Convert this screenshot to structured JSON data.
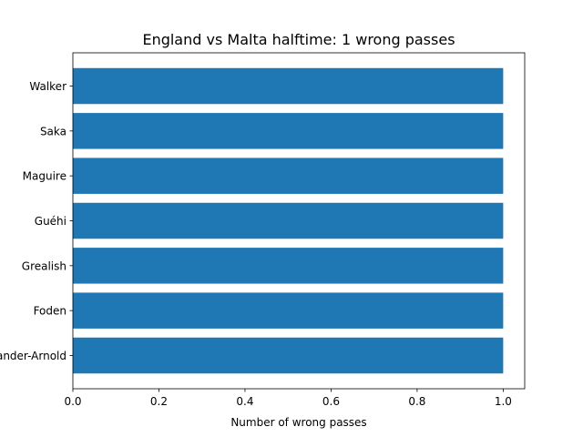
{
  "chart_data": {
    "type": "bar",
    "orientation": "horizontal",
    "title": "England vs Malta halftime: 1 wrong passes",
    "xlabel": "Number of wrong passes",
    "ylabel": "",
    "categories": [
      "Walker",
      "Saka",
      "Maguire",
      "Guéhi",
      "Grealish",
      "Foden",
      "Alexander-Arnold"
    ],
    "values": [
      1,
      1,
      1,
      1,
      1,
      1,
      1
    ],
    "xlim": [
      0,
      1.05
    ],
    "xticks": [
      0.0,
      0.2,
      0.4,
      0.6,
      0.8,
      1.0
    ],
    "xtick_labels": [
      "0.0",
      "0.2",
      "0.4",
      "0.6",
      "0.8",
      "1.0"
    ],
    "bar_color": "#1f77b4",
    "grid": false,
    "legend": "none"
  }
}
